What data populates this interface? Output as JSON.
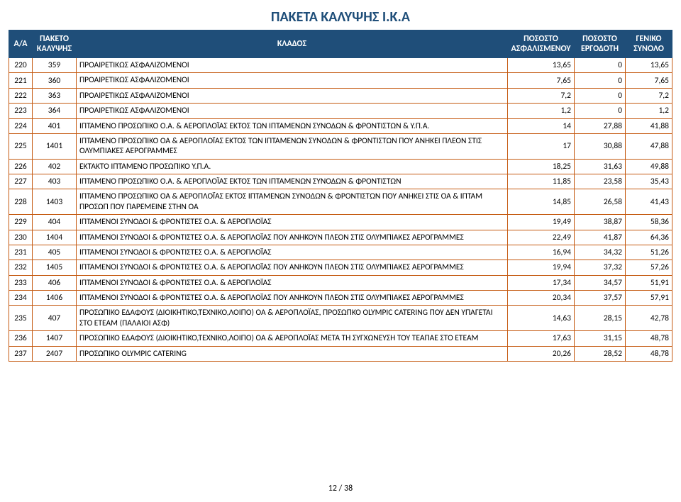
{
  "title": "ΠΑΚΕΤΑ ΚΑΛΥΨΗΣ Ι.Κ.Α",
  "headers": {
    "aa": "Α/Α",
    "paketo": "ΠΑΚΕΤΟ ΚΑΛΥΨΗΣ",
    "klados": "ΚΛΑΔΟΣ",
    "p_asf": "ΠΟΣΟΣΤΟ ΑΣΦΑΛΙΣΜΕΝΟΥ",
    "p_erg": "ΠΟΣΟΣΤΟ ΕΡΓΟΔΟΤΗ",
    "gs": "ΓΕΝΙΚΟ ΣΥΝΟΛΟ"
  },
  "footer": "12 / 38",
  "style": {
    "header_bg": "#1f4e79",
    "header_text": "#ffffff",
    "cell_border": "#c55a11",
    "title_color": "#1f4e79",
    "background": "#ffffff",
    "title_fontsize": 20,
    "header_fontsize": 12,
    "cell_fontsize": 11.5
  },
  "rows": [
    {
      "aa": "220",
      "pk": "359",
      "klados": "ΠΡΟΑΙΡΕΤΙΚΩΣ ΑΣΦΑΛΙΖΟΜΕΝΟΙ",
      "p1": "13,65",
      "p2": "0",
      "gs": "13,65"
    },
    {
      "aa": "221",
      "pk": "360",
      "klados": "ΠΡΟΑΙΡΕΤΙΚΩΣ ΑΣΦΑΛΙΖΟΜΕΝΟΙ",
      "p1": "7,65",
      "p2": "0",
      "gs": "7,65"
    },
    {
      "aa": "222",
      "pk": "363",
      "klados": "ΠΡΟΑΙΡΕΤΙΚΩΣ ΑΣΦΑΛΙΖΟΜΕΝΟΙ",
      "p1": "7,2",
      "p2": "0",
      "gs": "7,2"
    },
    {
      "aa": "223",
      "pk": "364",
      "klados": "ΠΡΟΑΙΡΕΤΙΚΩΣ ΑΣΦΑΛΙΖΟΜΕΝΟΙ",
      "p1": "1,2",
      "p2": "0",
      "gs": "1,2"
    },
    {
      "aa": "224",
      "pk": "401",
      "klados": "ΙΠΤΑΜΕΝΟ ΠΡΟΣΩΠΙΚΟ Ο.Α. & ΑΕΡΟΠΛΟΪΑΣ ΕΚΤΟΣ ΤΩΝ ΙΠΤΑΜΕΝΩΝ ΣΥΝΟΔΩΝ & ΦΡΟΝΤΙΣΤΩΝ & Υ.Π.Α.",
      "p1": "14",
      "p2": "27,88",
      "gs": "41,88"
    },
    {
      "aa": "225",
      "pk": "1401",
      "klados": "ΙΠΤΑΜΕΝΟ ΠΡΟΣΩΠΙΚΟ ΟΑ & ΑΕΡΟΠΛΟΪΑΣ ΕΚΤΟΣ ΤΩΝ ΙΠΤΑΜΕΝΩΝ ΣΥΝΟΔΩΝ & ΦΡΟΝΤΙΣΤΩΝ ΠΟΥ ΑΝΗΚΕΙ ΠΛΕΟΝ ΣΤΙΣ ΟΛΥΜΠΙΑΚΕΣ ΑΕΡΟΓΡΑΜΜΕΣ",
      "p1": "17",
      "p2": "30,88",
      "gs": "47,88"
    },
    {
      "aa": "226",
      "pk": "402",
      "klados": "ΕΚΤΑΚΤΟ ΙΠΤΑΜΕΝΟ ΠΡΟΣΩΠΙΚΟ Υ.Π.Α.",
      "p1": "18,25",
      "p2": "31,63",
      "gs": "49,88"
    },
    {
      "aa": "227",
      "pk": "403",
      "klados": "ΙΠΤΑΜΕΝΟ ΠΡΟΣΩΠΙΚΟ Ο.Α. & ΑΕΡΟΠΛΟΪΑΣ ΕΚΤΟΣ ΤΩΝ ΙΠΤΑΜΕΝΩΝ ΣΥΝΟΔΩΝ & ΦΡΟΝΤΙΣΤΩΝ",
      "p1": "11,85",
      "p2": "23,58",
      "gs": "35,43"
    },
    {
      "aa": "228",
      "pk": "1403",
      "klados": "ΙΠΤΑΜΕΝΟ ΠΡΟΣΩΠΙΚΟ ΟΑ & ΑΕΡΟΠΛΟΪΑΣ ΕΚΤΟΣ ΙΠΤΑΜΕΝΩΝ ΣΥΝΟΔΩΝ & ΦΡΟΝΤΙΣΤΩΝ ΠΟΥ ΑΝΗΚΕΙ ΣΤΙΣ ΟΑ & ΙΠΤΑΜ ΠΡΟΣΩΠ ΠΟΥ ΠΑΡΕΜΕΙΝΕ ΣΤΗΝ ΟΑ",
      "p1": "14,85",
      "p2": "26,58",
      "gs": "41,43"
    },
    {
      "aa": "229",
      "pk": "404",
      "klados": "ΙΠΤΑΜΕΝΟΙ ΣΥΝΟΔΟΙ & ΦΡΟΝΤΙΣΤΕΣ Ο.Α. & ΑΕΡΟΠΛΟΪΑΣ",
      "p1": "19,49",
      "p2": "38,87",
      "gs": "58,36"
    },
    {
      "aa": "230",
      "pk": "1404",
      "klados": "ΙΠΤΑΜΕΝΟΙ ΣΥΝΟΔΟΙ & ΦΡΟΝΤΙΣΤΕΣ Ο.Α. & ΑΕΡΟΠΛΟΪΑΣ ΠΟΥ ΑΝΗΚΟΥΝ ΠΛΕΟΝ ΣΤΙΣ ΟΛΥΜΠΙΑΚΕΣ ΑΕΡΟΓΡΑΜΜΕΣ",
      "p1": "22,49",
      "p2": "41,87",
      "gs": "64,36"
    },
    {
      "aa": "231",
      "pk": "405",
      "klados": "ΙΠΤΑΜΕΝΟΙ ΣΥΝΟΔΟΙ & ΦΡΟΝΤΙΣΤΕΣ Ο.Α. & ΑΕΡΟΠΛΟΪΑΣ",
      "p1": "16,94",
      "p2": "34,32",
      "gs": "51,26"
    },
    {
      "aa": "232",
      "pk": "1405",
      "klados": "ΙΠΤΑΜΕΝΟΙ ΣΥΝΟΔΟΙ & ΦΡΟΝΤΙΣΤΕΣ Ο.Α. & ΑΕΡΟΠΛΟΪΑΣ ΠΟΥ ΑΝΗΚΟΥΝ ΠΛΕΟΝ ΣΤΙΣ ΟΛΥΜΠΙΑΚΕΣ ΑΕΡΟΓΡΑΜΜΕΣ",
      "p1": "19,94",
      "p2": "37,32",
      "gs": "57,26"
    },
    {
      "aa": "233",
      "pk": "406",
      "klados": "ΙΠΤΑΜΕΝΟΙ ΣΥΝΟΔΟΙ & ΦΡΟΝΤΙΣΤΕΣ Ο.Α. & ΑΕΡΟΠΛΟΪΑΣ",
      "p1": "17,34",
      "p2": "34,57",
      "gs": "51,91"
    },
    {
      "aa": "234",
      "pk": "1406",
      "klados": "ΙΠΤΑΜΕΝΟΙ ΣΥΝΟΔΟΙ & ΦΡΟΝΤΙΣΤΕΣ Ο.Α. & ΑΕΡΟΠΛΟΪΑΣ ΠΟΥ ΑΝΗΚΟΥΝ ΠΛΕΟΝ ΣΤΙΣ ΟΛΥΜΠΙΑΚΕΣ ΑΕΡΟΓΡΑΜΜΕΣ",
      "p1": "20,34",
      "p2": "37,57",
      "gs": "57,91"
    },
    {
      "aa": "235",
      "pk": "407",
      "klados": "ΠΡΟΣΩΠΙΚΟ ΕΔΑΦΟΥΣ (ΔΙΟΙΚΗΤΙΚΟ,ΤΕΧΝΙΚΟ,ΛΟΙΠΟ) ΟΑ & ΑΕΡΟΠΛΟΪΑΣ, ΠΡΟΣΩΠΚΟ OLYMPIC CATERING ΠΟΥ ΔΕΝ ΥΠΑΓΕΤΑΙ ΣΤΟ ΕΤΕΑΜ (ΠΑΛΑΙΟΙ ΑΣΦ)",
      "p1": "14,63",
      "p2": "28,15",
      "gs": "42,78"
    },
    {
      "aa": "236",
      "pk": "1407",
      "klados": "ΠΡΟΣΩΠΙΚΟ ΕΔΑΦΟΥΣ (ΔΙΟΙΚΗΤΙΚΟ,ΤΕΧΝΙΚΟ,ΛΟΙΠΟ) ΟΑ & ΑΕΡΟΠΛΟΪΑΣ ΜΕΤΑ ΤΗ ΣΥΓΧΩΝΕΥΣΗ ΤΟΥ ΤΕΑΠΑΕ ΣΤΟ ΕΤΕΑΜ",
      "p1": "17,63",
      "p2": "31,15",
      "gs": "48,78"
    },
    {
      "aa": "237",
      "pk": "2407",
      "klados": "ΠΡΟΣΩΠΙΚΟ OLYMPIC CATERING",
      "p1": "20,26",
      "p2": "28,52",
      "gs": "48,78"
    }
  ]
}
